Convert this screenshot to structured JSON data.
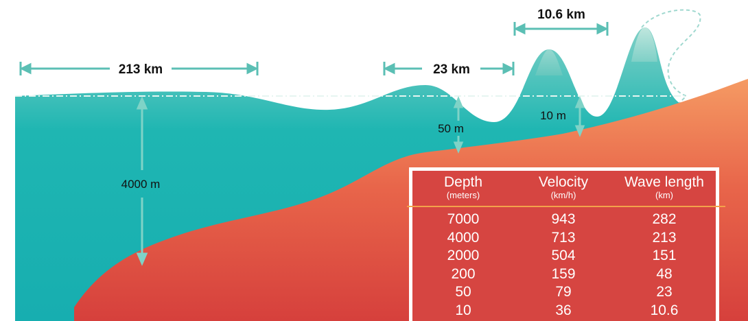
{
  "annotations": {
    "wavelength_deep": "213 km",
    "wavelength_mid": "23 km",
    "wavelength_shallow": "10.6 km",
    "depth_deep": "4000 m",
    "depth_mid": "50 m",
    "depth_shallow": "10 m"
  },
  "colors": {
    "ocean": "#1fb3b0",
    "seafloor": "#e0533f",
    "table_bg": "#d64541",
    "table_rule": "#f3a24a"
  },
  "table": {
    "headers": [
      {
        "label": "Depth",
        "unit": "(meters)"
      },
      {
        "label": "Velocity",
        "unit": "(km/h)"
      },
      {
        "label": "Wave length",
        "unit": "(km)"
      }
    ],
    "rows": [
      [
        "7000",
        "943",
        "282"
      ],
      [
        "4000",
        "713",
        "213"
      ],
      [
        "2000",
        "504",
        "151"
      ],
      [
        "200",
        "159",
        "48"
      ],
      [
        "50",
        "79",
        "23"
      ],
      [
        "10",
        "36",
        "10.6"
      ]
    ]
  }
}
